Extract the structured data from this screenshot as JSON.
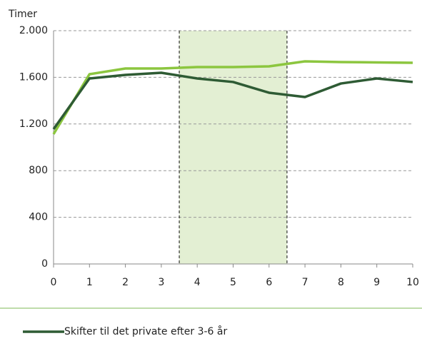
{
  "chart_data": {
    "type": "line",
    "y_axis_title": "Timer",
    "x": [
      0,
      1,
      2,
      3,
      4,
      5,
      6,
      7,
      8,
      9,
      10
    ],
    "xlim": [
      0,
      10
    ],
    "xticks": [
      0,
      1,
      2,
      3,
      4,
      5,
      6,
      7,
      8,
      9,
      10
    ],
    "ylim": [
      0,
      2000
    ],
    "yticks": [
      0,
      400,
      800,
      {
        "value": 1200,
        "label": "1.200"
      },
      {
        "value": 1600,
        "label": "1.600"
      },
      {
        "value": 2000,
        "label": "2.000"
      }
    ],
    "grid": true,
    "highlight_x": [
      3.5,
      6.5
    ],
    "highlight_color": "#e3efd3",
    "series": [
      {
        "color": "#8cc63f",
        "values": [
          1113,
          1627,
          1676,
          1676,
          1688,
          1688,
          1694,
          1737,
          1731,
          1728,
          1725
        ]
      },
      {
        "name": "Skifter til det private efter 3-6 år",
        "color": "#2e5b34",
        "values": [
          1156,
          1590,
          1621,
          1639,
          1590,
          1560,
          1468,
          1431,
          1547,
          1590,
          1560
        ]
      }
    ],
    "legend": "bottom-left"
  }
}
